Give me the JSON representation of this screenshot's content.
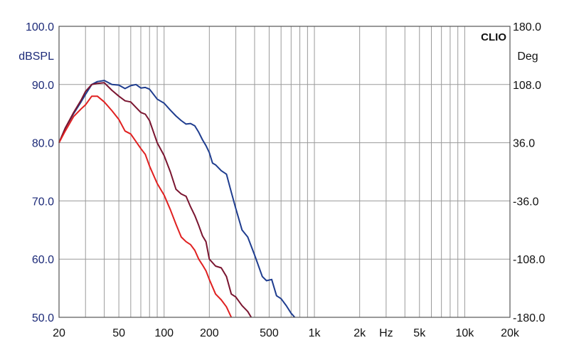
{
  "chart_data": {
    "type": "line",
    "brand": "CLIO",
    "ylabel_left": "dBSPL",
    "ylabel_right": "Deg",
    "xlabel": "Hz",
    "x_scale": "log",
    "xlim": [
      20,
      20000
    ],
    "ylim": [
      50,
      100
    ],
    "ylim_right": [
      -180,
      180
    ],
    "grid": true,
    "x_tick_labels": [
      {
        "value": 20,
        "label": "20"
      },
      {
        "value": 50,
        "label": "50"
      },
      {
        "value": 100,
        "label": "100"
      },
      {
        "value": 200,
        "label": "200"
      },
      {
        "value": 500,
        "label": "500"
      },
      {
        "value": 1000,
        "label": "1k"
      },
      {
        "value": 2000,
        "label": "2k"
      },
      {
        "value": 5000,
        "label": "5k"
      },
      {
        "value": 10000,
        "label": "10k"
      },
      {
        "value": 20000,
        "label": "20k"
      }
    ],
    "y_ticks_left": [
      "100.0",
      "90.0",
      "80.0",
      "70.0",
      "60.0",
      "50.0"
    ],
    "y_ticks_right": [
      "180.0",
      "108.0",
      "36.0",
      "-36.0",
      "-108.0",
      "-180.0"
    ],
    "series": [
      {
        "color": "#1f3d8f",
        "x": [
          20,
          22,
          25,
          28,
          30,
          33,
          36,
          40,
          45,
          50,
          55,
          60,
          65,
          70,
          75,
          80,
          90,
          100,
          110,
          120,
          130,
          140,
          150,
          160,
          170,
          180,
          190,
          200,
          210,
          220,
          240,
          260,
          280,
          300,
          330,
          360,
          400,
          450,
          480,
          520,
          560,
          600,
          650,
          700,
          740
        ],
        "y": [
          80.0,
          82.5,
          85.0,
          87.0,
          88.3,
          90.0,
          90.5,
          90.7,
          90.0,
          89.9,
          89.3,
          89.8,
          90.0,
          89.4,
          89.5,
          89.2,
          87.5,
          86.8,
          85.6,
          84.6,
          83.8,
          83.2,
          83.3,
          82.9,
          81.8,
          80.5,
          79.5,
          78.3,
          76.5,
          76.2,
          75.2,
          74.6,
          71.5,
          68.7,
          65.0,
          63.8,
          60.7,
          57.0,
          56.3,
          56.5,
          53.7,
          53.2,
          52.0,
          50.7,
          50.0
        ]
      },
      {
        "color": "#7a1530",
        "x": [
          20,
          22,
          25,
          28,
          30,
          33,
          36,
          40,
          45,
          50,
          55,
          60,
          70,
          75,
          80,
          90,
          100,
          110,
          120,
          130,
          140,
          150,
          160,
          170,
          180,
          190,
          200,
          220,
          240,
          260,
          280,
          300,
          330,
          360,
          380
        ],
        "y": [
          80.0,
          82.5,
          85.2,
          87.3,
          88.8,
          90.0,
          90.2,
          90.3,
          89.0,
          88.0,
          87.2,
          87.0,
          85.2,
          84.9,
          83.8,
          80.0,
          77.8,
          75.0,
          72.0,
          71.2,
          70.8,
          69.0,
          67.5,
          65.8,
          64.0,
          63.0,
          60.0,
          58.8,
          58.5,
          57.0,
          54.0,
          53.5,
          52.0,
          51.0,
          50.0
        ]
      },
      {
        "color": "#e02020",
        "x": [
          20,
          22,
          25,
          28,
          30,
          33,
          36,
          40,
          45,
          50,
          55,
          60,
          70,
          75,
          80,
          90,
          100,
          110,
          120,
          130,
          140,
          150,
          160,
          170,
          180,
          190,
          200,
          220,
          240,
          260,
          280
        ],
        "y": [
          80.0,
          82.0,
          84.5,
          85.8,
          86.5,
          88.0,
          88.0,
          87.0,
          85.5,
          84.0,
          82.0,
          81.5,
          79.0,
          78.0,
          76.0,
          73.0,
          71.0,
          68.5,
          66.0,
          63.8,
          63.0,
          62.5,
          61.5,
          60.0,
          59.0,
          58.0,
          56.5,
          54.0,
          53.0,
          51.8,
          50.0
        ]
      }
    ]
  }
}
